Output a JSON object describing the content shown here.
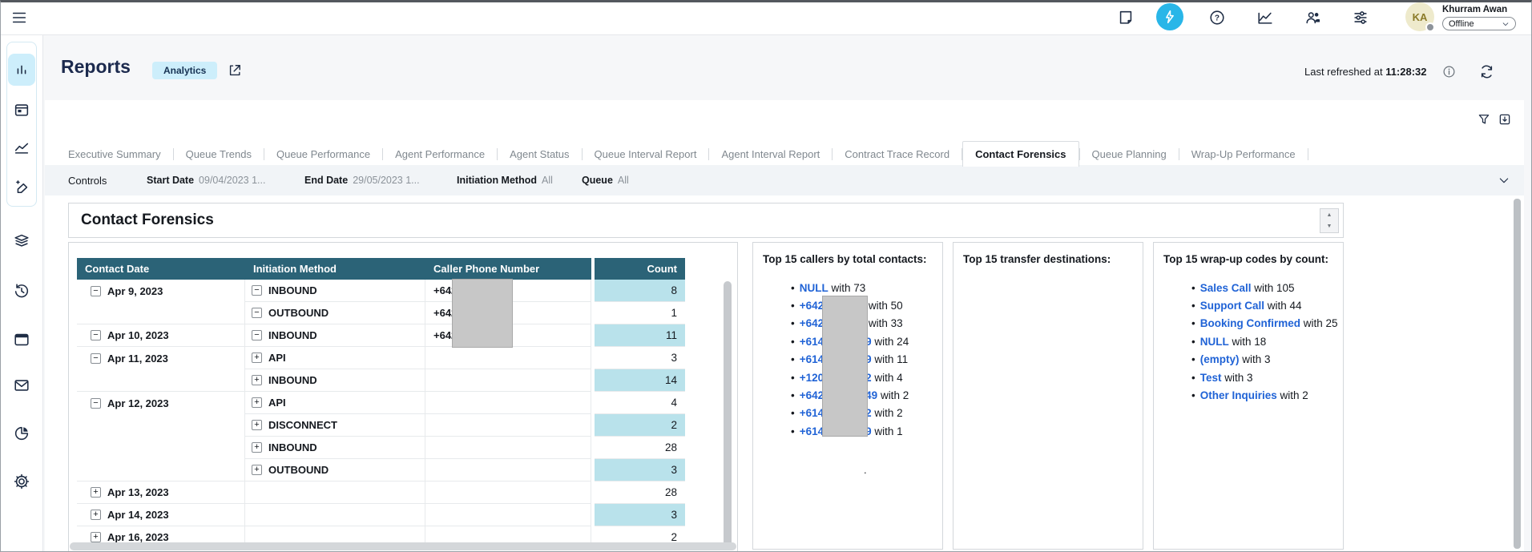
{
  "user": {
    "initials": "KA",
    "name": "Khurram Awan",
    "status": "Offline"
  },
  "topbar": {
    "icons": [
      "menu-icon",
      "notepad-icon",
      "bolt-icon",
      "help-icon",
      "metrics-icon",
      "users-icon",
      "sliders-icon"
    ]
  },
  "sidebar": {
    "items": [
      "analyses-bar-chart",
      "calendar",
      "metrics-line",
      "design-brush",
      "layers",
      "history",
      "window",
      "mail",
      "pie-chart",
      "settings-gear"
    ],
    "active": "analyses-bar-chart"
  },
  "page": {
    "title": "Reports",
    "badge": "Analytics",
    "last_refreshed_label": "Last refreshed at",
    "last_refreshed_time": "11:28:32"
  },
  "tabs": {
    "active": "Contact Forensics",
    "items": [
      "Executive Summary",
      "Queue Trends",
      "Queue Performance",
      "Agent Performance",
      "Agent Status",
      "Queue Interval Report",
      "Agent Interval Report",
      "Contract Trace Record",
      "Contact Forensics",
      "Queue Planning",
      "Wrap-Up Performance"
    ]
  },
  "controls": {
    "label": "Controls",
    "filters": [
      {
        "label": "Start Date",
        "value": "09/04/2023 1..."
      },
      {
        "label": "End Date",
        "value": "29/05/2023 1..."
      },
      {
        "label": "Initiation Method",
        "value": "All"
      },
      {
        "label": "Queue",
        "value": "All"
      }
    ]
  },
  "section": {
    "title": "Contact Forensics"
  },
  "table": {
    "columns": [
      "Contact Date",
      "Initiation Method",
      "Caller Phone Number",
      "Count"
    ],
    "rows": [
      {
        "date": "Apr 9, 2023",
        "date_toggle": "minus",
        "method": "INBOUND",
        "method_toggle": "minus",
        "phone": "+642",
        "count": 8,
        "highlight": true
      },
      {
        "date": "",
        "date_toggle": null,
        "method": "OUTBOUND",
        "method_toggle": "minus",
        "phone": "+642",
        "count": 1,
        "highlight": false
      },
      {
        "date": "Apr 10, 2023",
        "date_toggle": "minus",
        "method": "INBOUND",
        "method_toggle": "minus",
        "phone": "+642",
        "count": 11,
        "highlight": true
      },
      {
        "date": "Apr 11, 2023",
        "date_toggle": "minus",
        "method": "API",
        "method_toggle": "plus",
        "phone": "",
        "count": 3,
        "highlight": false
      },
      {
        "date": "",
        "date_toggle": null,
        "method": "INBOUND",
        "method_toggle": "plus",
        "phone": "",
        "count": 14,
        "highlight": true
      },
      {
        "date": "Apr 12, 2023",
        "date_toggle": "minus",
        "method": "API",
        "method_toggle": "plus",
        "phone": "",
        "count": 4,
        "highlight": false
      },
      {
        "date": "",
        "date_toggle": null,
        "method": "DISCONNECT",
        "method_toggle": "plus",
        "phone": "",
        "count": 2,
        "highlight": true
      },
      {
        "date": "",
        "date_toggle": null,
        "method": "INBOUND",
        "method_toggle": "plus",
        "phone": "",
        "count": 28,
        "highlight": false
      },
      {
        "date": "",
        "date_toggle": null,
        "method": "OUTBOUND",
        "method_toggle": "plus",
        "phone": "",
        "count": 3,
        "highlight": true
      },
      {
        "date": "Apr 13, 2023",
        "date_toggle": "plus",
        "method": "",
        "method_toggle": null,
        "phone": "",
        "count": 28,
        "highlight": false
      },
      {
        "date": "Apr 14, 2023",
        "date_toggle": "plus",
        "method": "",
        "method_toggle": null,
        "phone": "",
        "count": 3,
        "highlight": true
      },
      {
        "date": "Apr 16, 2023",
        "date_toggle": "plus",
        "method": "",
        "method_toggle": null,
        "phone": "",
        "count": 2,
        "highlight": false
      }
    ],
    "phone_redacted_rows": [
      0,
      1,
      2
    ]
  },
  "panels": [
    {
      "title": "Top 15 callers by total contacts:",
      "redacted": true,
      "footnote": ".",
      "items": [
        {
          "link": "NULL",
          "rest": "with 73"
        },
        {
          "link": "+642",
          "gap": true,
          "tail": "",
          "rest": "with 50"
        },
        {
          "link": "+642",
          "gap": true,
          "tail": "",
          "rest": "with 33"
        },
        {
          "link": "+614",
          "gap": true,
          "tail": "9",
          "rest": "with 24"
        },
        {
          "link": "+614",
          "gap": true,
          "tail": "9",
          "rest": "with 11"
        },
        {
          "link": "+120",
          "gap": true,
          "tail": "2",
          "rest": "with 4"
        },
        {
          "link": "+642",
          "gap": true,
          "tail": "49",
          "rest": "with 2"
        },
        {
          "link": "+614",
          "gap": true,
          "tail": "2",
          "rest": "with 2"
        },
        {
          "link": "+614",
          "gap": true,
          "tail": "9",
          "rest": "with 1"
        }
      ]
    },
    {
      "title": "Top 15 transfer destinations:",
      "items": []
    },
    {
      "title": "Top 15 wrap-up codes by count:",
      "items": [
        {
          "link": "Sales Call",
          "rest": "with 105"
        },
        {
          "link": "Support Call",
          "rest": "with 44"
        },
        {
          "link": "Booking Confirmed",
          "rest": "with 25"
        },
        {
          "link": "NULL",
          "rest": "with 18"
        },
        {
          "link": "(empty)",
          "rest": "with 3"
        },
        {
          "link": "Test",
          "rest": "with 3"
        },
        {
          "link": "Other Inquiries",
          "rest": "with 2"
        }
      ]
    }
  ],
  "colors": {
    "accent_cyan": "#29b6e8",
    "header_teal": "#2b6377",
    "count_highlight": "#b9e2eb",
    "link_blue": "#2063d6",
    "navy": "#1c2a4e"
  }
}
